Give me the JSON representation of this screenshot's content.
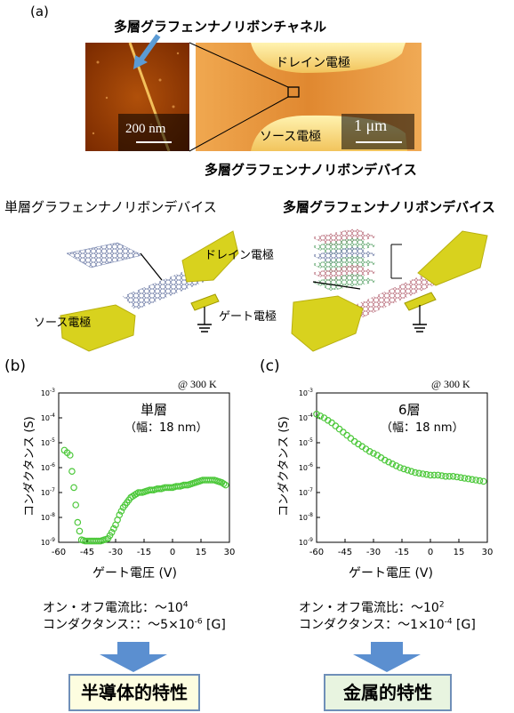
{
  "panel_a": {
    "label": "(a)",
    "channel_label": "多層グラフェンナノリボンチャネル",
    "drain_label": "ドレイン電極",
    "source_label": "ソース電極",
    "scale_small": "200 nm",
    "scale_large": "1 μm",
    "device_caption": "多層グラフェンナノリボンデバイス"
  },
  "schematics": {
    "single_title": "単層グラフェンナノリボンデバイス",
    "multi_title": "多層グラフェンナノリボンデバイス",
    "drain_label": "ドレイン電極",
    "source_label": "ソース電極",
    "gate_label": "ゲート電極"
  },
  "panel_b": {
    "label": "(b)",
    "temp": "@ 300 K",
    "layer_text": "単層",
    "width_text": "（幅：18 nm）",
    "ylabel": "コンダクタンス (S)",
    "xlabel": "ゲート電圧 (V)",
    "ratio_text": "オン・オフ電流比：～10",
    "ratio_sup": "4",
    "conductance_text": "コンダクタンス：：～5×10",
    "conductance_sup": "-6",
    "conductance_unit": " [G]",
    "result": "半導体的特性"
  },
  "panel_c": {
    "label": "(c)",
    "temp": "@ 300 K",
    "layer_text": "6層",
    "width_text": "（幅：18 nm）",
    "ylabel": "コンダクタンス (S)",
    "xlabel": "ゲート電圧 (V)",
    "ratio_text": "オン・オフ電流比：～10",
    "ratio_sup": "2",
    "conductance_text": "コンダクタンス：～1×10",
    "conductance_sup": "-4",
    "conductance_unit": " [G]",
    "result": "金属的特性"
  },
  "colors": {
    "electrode": "#d8d21e",
    "afm_dark": "#8a3200",
    "afm_light": "#f2c86a",
    "data_green": "#4cc83a",
    "arrow_blue": "#5b8fd0",
    "box_fill": "#fdfde0",
    "box_fill2": "#e8f4e0"
  },
  "chart_data": [
    {
      "type": "scatter",
      "title": "",
      "xlabel": "ゲート電圧 (V)",
      "ylabel": "コンダクタンス (S)",
      "xlim": [
        -60,
        30
      ],
      "ylim_log10": [
        -9,
        -3
      ],
      "x_ticks": [
        -60,
        -45,
        -30,
        -15,
        0,
        15,
        30
      ],
      "y_ticks": [
        "10-9",
        "10-8",
        "10-7",
        "10-6",
        "10-5",
        "10-4",
        "10-3"
      ],
      "series": [
        {
          "x": [
            -57,
            -54,
            -52,
            -50,
            -48,
            -46,
            -44,
            -42,
            -40,
            -38,
            -36,
            -34,
            -32,
            -30,
            -28,
            -26,
            -24,
            -22,
            -20,
            -18,
            -16,
            -14,
            -12,
            -10,
            -8,
            -6,
            -4,
            -2,
            0,
            2,
            4,
            6,
            8,
            10,
            12,
            14,
            16,
            18,
            20,
            22,
            24,
            26,
            28
          ],
          "log10_y": [
            -5.3,
            -5.5,
            -6.8,
            -8.2,
            -8.9,
            -8.95,
            -8.95,
            -8.95,
            -8.95,
            -8.95,
            -8.9,
            -8.85,
            -8.6,
            -8.3,
            -7.9,
            -7.6,
            -7.4,
            -7.2,
            -7.1,
            -7.0,
            -7.0,
            -6.95,
            -6.9,
            -6.9,
            -6.85,
            -6.85,
            -6.8,
            -6.8,
            -6.8,
            -6.75,
            -6.75,
            -6.7,
            -6.7,
            -6.65,
            -6.6,
            -6.55,
            -6.5,
            -6.5,
            -6.5,
            -6.5,
            -6.55,
            -6.6,
            -6.7
          ]
        }
      ]
    },
    {
      "type": "scatter",
      "title": "",
      "xlabel": "ゲート電圧 (V)",
      "ylabel": "コンダクタンス (S)",
      "xlim": [
        -60,
        30
      ],
      "ylim_log10": [
        -9,
        -3
      ],
      "x_ticks": [
        -60,
        -45,
        -30,
        -15,
        0,
        15,
        30
      ],
      "y_ticks": [
        "10-9",
        "10-8",
        "10-7",
        "10-6",
        "10-5",
        "10-4",
        "10-3"
      ],
      "series": [
        {
          "x": [
            -60,
            -56,
            -52,
            -48,
            -44,
            -40,
            -36,
            -32,
            -28,
            -24,
            -20,
            -16,
            -12,
            -8,
            -4,
            0,
            4,
            8,
            12,
            16,
            20,
            24,
            28
          ],
          "log10_y": [
            -3.85,
            -4.0,
            -4.2,
            -4.45,
            -4.7,
            -4.95,
            -5.15,
            -5.35,
            -5.5,
            -5.7,
            -5.85,
            -6.0,
            -6.1,
            -6.2,
            -6.25,
            -6.3,
            -6.3,
            -6.35,
            -6.35,
            -6.4,
            -6.45,
            -6.5,
            -6.55
          ]
        }
      ]
    }
  ]
}
